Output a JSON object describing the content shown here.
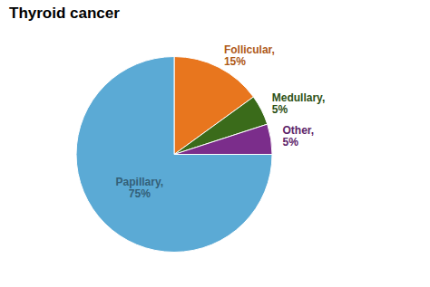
{
  "chart_data": {
    "type": "pie",
    "title": "Thyroid cancer",
    "categories": [
      "Follicular",
      "Medullary",
      "Other",
      "Papillary"
    ],
    "values": [
      15,
      5,
      5,
      75
    ],
    "colors": [
      "#E8761E",
      "#3A6B1A",
      "#7B2D8B",
      "#5BAAD5"
    ],
    "data_labels": true,
    "value_labels": [
      "Follicular,\n15%",
      "Medullary,\n5%",
      "Other,\n5%",
      "Papillary,\n75%"
    ]
  }
}
